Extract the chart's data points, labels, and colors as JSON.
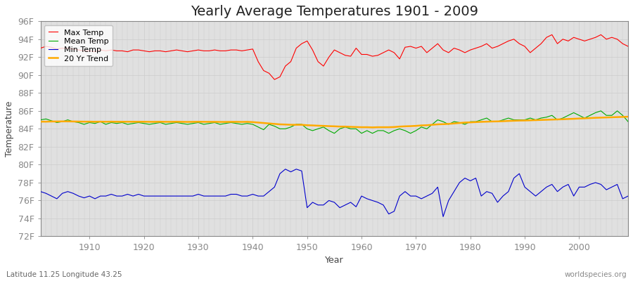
{
  "title": "Yearly Average Temperatures 1901 - 2009",
  "xlabel": "Year",
  "ylabel": "Temperature",
  "footer_left": "Latitude 11.25 Longitude 43.25",
  "footer_right": "worldspecies.org",
  "fig_bg_color": "#ffffff",
  "plot_bg_color": "#e0e0e0",
  "years": [
    1901,
    1902,
    1903,
    1904,
    1905,
    1906,
    1907,
    1908,
    1909,
    1910,
    1911,
    1912,
    1913,
    1914,
    1915,
    1916,
    1917,
    1918,
    1919,
    1920,
    1921,
    1922,
    1923,
    1924,
    1925,
    1926,
    1927,
    1928,
    1929,
    1930,
    1931,
    1932,
    1933,
    1934,
    1935,
    1936,
    1937,
    1938,
    1939,
    1940,
    1941,
    1942,
    1943,
    1944,
    1945,
    1946,
    1947,
    1948,
    1949,
    1950,
    1951,
    1952,
    1953,
    1954,
    1955,
    1956,
    1957,
    1958,
    1959,
    1960,
    1961,
    1962,
    1963,
    1964,
    1965,
    1966,
    1967,
    1968,
    1969,
    1970,
    1971,
    1972,
    1973,
    1974,
    1975,
    1976,
    1977,
    1978,
    1979,
    1980,
    1981,
    1982,
    1983,
    1984,
    1985,
    1986,
    1987,
    1988,
    1989,
    1990,
    1991,
    1992,
    1993,
    1994,
    1995,
    1996,
    1997,
    1998,
    1999,
    2000,
    2001,
    2002,
    2003,
    2004,
    2005,
    2006,
    2007,
    2008,
    2009
  ],
  "max_temp": [
    93.0,
    93.2,
    93.1,
    92.9,
    93.0,
    93.0,
    92.9,
    92.8,
    92.7,
    92.7,
    92.6,
    92.8,
    92.7,
    92.8,
    92.7,
    92.7,
    92.6,
    92.8,
    92.8,
    92.7,
    92.6,
    92.7,
    92.7,
    92.6,
    92.7,
    92.8,
    92.7,
    92.6,
    92.7,
    92.8,
    92.7,
    92.7,
    92.8,
    92.7,
    92.7,
    92.8,
    92.8,
    92.7,
    92.8,
    92.9,
    91.5,
    90.5,
    90.2,
    89.5,
    89.8,
    91.0,
    91.5,
    93.0,
    93.5,
    93.8,
    92.8,
    91.5,
    91.0,
    92.0,
    92.8,
    92.5,
    92.2,
    92.1,
    93.0,
    92.3,
    92.3,
    92.1,
    92.2,
    92.5,
    92.8,
    92.5,
    91.8,
    93.1,
    93.2,
    93.0,
    93.2,
    92.5,
    93.0,
    93.5,
    92.8,
    92.5,
    93.0,
    92.8,
    92.5,
    92.8,
    93.0,
    93.2,
    93.5,
    93.0,
    93.2,
    93.5,
    93.8,
    94.0,
    93.5,
    93.2,
    92.5,
    93.0,
    93.5,
    94.2,
    94.5,
    93.5,
    94.0,
    93.8,
    94.2,
    94.0,
    93.8,
    94.0,
    94.2,
    94.5,
    94.0,
    94.2,
    94.0,
    93.5,
    93.2
  ],
  "mean_temp": [
    85.0,
    85.1,
    84.9,
    84.7,
    84.8,
    85.0,
    84.8,
    84.7,
    84.5,
    84.7,
    84.6,
    84.8,
    84.5,
    84.7,
    84.6,
    84.7,
    84.5,
    84.6,
    84.7,
    84.6,
    84.5,
    84.6,
    84.7,
    84.5,
    84.6,
    84.7,
    84.6,
    84.5,
    84.6,
    84.7,
    84.5,
    84.6,
    84.7,
    84.5,
    84.6,
    84.7,
    84.6,
    84.5,
    84.6,
    84.5,
    84.2,
    83.9,
    84.5,
    84.3,
    84.0,
    84.0,
    84.2,
    84.5,
    84.5,
    84.0,
    83.8,
    84.0,
    84.2,
    83.8,
    83.5,
    84.0,
    84.2,
    84.0,
    84.0,
    83.5,
    83.8,
    83.5,
    83.8,
    83.8,
    83.5,
    83.8,
    84.0,
    83.8,
    83.5,
    83.8,
    84.2,
    84.0,
    84.5,
    85.0,
    84.8,
    84.5,
    84.8,
    84.7,
    84.5,
    84.8,
    84.8,
    85.0,
    85.2,
    84.8,
    84.8,
    85.0,
    85.2,
    85.0,
    85.0,
    85.0,
    85.2,
    85.0,
    85.2,
    85.3,
    85.5,
    85.0,
    85.2,
    85.5,
    85.8,
    85.5,
    85.2,
    85.5,
    85.8,
    86.0,
    85.5,
    85.5,
    86.0,
    85.5,
    84.8
  ],
  "min_temp": [
    77.0,
    76.8,
    76.5,
    76.2,
    76.8,
    77.0,
    76.8,
    76.5,
    76.3,
    76.5,
    76.2,
    76.5,
    76.5,
    76.7,
    76.5,
    76.5,
    76.7,
    76.5,
    76.7,
    76.5,
    76.5,
    76.5,
    76.5,
    76.5,
    76.5,
    76.5,
    76.5,
    76.5,
    76.5,
    76.7,
    76.5,
    76.5,
    76.5,
    76.5,
    76.5,
    76.7,
    76.7,
    76.5,
    76.5,
    76.7,
    76.5,
    76.5,
    77.0,
    77.5,
    79.0,
    79.5,
    79.2,
    79.5,
    79.3,
    75.2,
    75.8,
    75.5,
    75.5,
    76.0,
    75.8,
    75.2,
    75.5,
    75.8,
    75.3,
    76.5,
    76.2,
    76.0,
    75.8,
    75.5,
    74.5,
    74.8,
    76.5,
    77.0,
    76.5,
    76.5,
    76.2,
    76.5,
    76.8,
    77.5,
    74.2,
    76.0,
    77.0,
    78.0,
    78.5,
    78.2,
    78.5,
    76.5,
    77.0,
    76.8,
    75.8,
    76.5,
    77.0,
    78.5,
    79.0,
    77.5,
    77.0,
    76.5,
    77.0,
    77.5,
    77.8,
    77.0,
    77.5,
    77.8,
    76.5,
    77.5,
    77.5,
    77.8,
    78.0,
    77.8,
    77.2,
    77.5,
    77.8,
    76.2,
    76.5
  ],
  "trend": [
    84.8,
    84.8,
    84.82,
    84.82,
    84.83,
    84.83,
    84.82,
    84.81,
    84.8,
    84.8,
    84.79,
    84.8,
    84.79,
    84.8,
    84.79,
    84.79,
    84.79,
    84.79,
    84.79,
    84.79,
    84.78,
    84.78,
    84.79,
    84.78,
    84.78,
    84.79,
    84.78,
    84.77,
    84.78,
    84.79,
    84.78,
    84.78,
    84.78,
    84.77,
    84.77,
    84.78,
    84.78,
    84.77,
    84.78,
    84.75,
    84.7,
    84.65,
    84.6,
    84.55,
    84.5,
    84.48,
    84.45,
    84.45,
    84.45,
    84.4,
    84.38,
    84.35,
    84.33,
    84.3,
    84.28,
    84.25,
    84.25,
    84.22,
    84.2,
    84.18,
    84.18,
    84.16,
    84.18,
    84.18,
    84.18,
    84.2,
    84.25,
    84.28,
    84.3,
    84.33,
    84.38,
    84.4,
    84.45,
    84.5,
    84.52,
    84.55,
    84.6,
    84.65,
    84.7,
    84.72,
    84.75,
    84.78,
    84.8,
    84.82,
    84.83,
    84.85,
    84.88,
    84.9,
    84.92,
    84.93,
    84.95,
    84.97,
    84.99,
    85.01,
    85.03,
    85.05,
    85.07,
    85.1,
    85.12,
    85.15,
    85.17,
    85.2,
    85.23,
    85.25,
    85.27,
    85.29,
    85.31,
    85.33,
    85.35
  ],
  "ylim": [
    72,
    96
  ],
  "yticks": [
    72,
    74,
    76,
    78,
    80,
    82,
    84,
    86,
    88,
    90,
    92,
    94,
    96
  ],
  "ytick_labels": [
    "72F",
    "74F",
    "76F",
    "78F",
    "80F",
    "82F",
    "84F",
    "86F",
    "88F",
    "90F",
    "92F",
    "94F",
    "96F"
  ],
  "xticks": [
    1910,
    1920,
    1930,
    1940,
    1950,
    1960,
    1970,
    1980,
    1990,
    2000
  ],
  "max_color": "#ff0000",
  "mean_color": "#00aa00",
  "min_color": "#0000cc",
  "trend_color": "#ffaa00",
  "grid_color": "#cccccc",
  "title_fontsize": 14,
  "axis_fontsize": 9,
  "legend_fontsize": 8,
  "tick_color": "#888888",
  "spine_color": "#888888"
}
